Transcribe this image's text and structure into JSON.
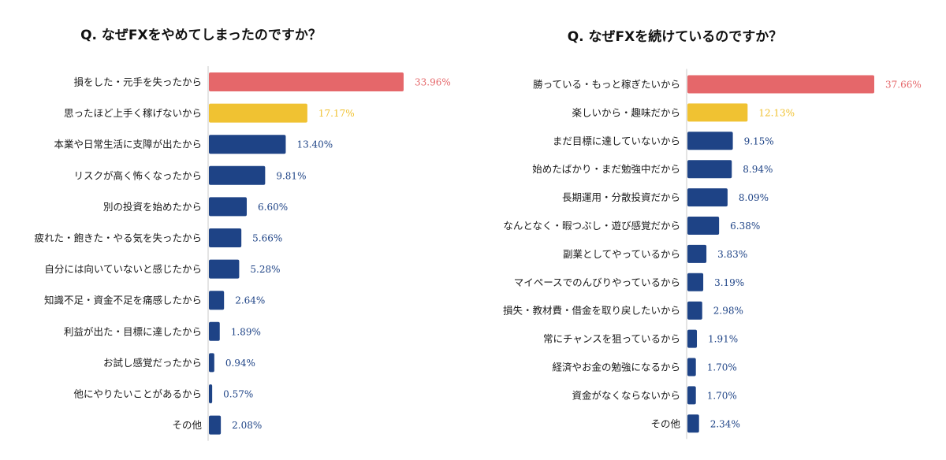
{
  "colors": {
    "top1": "#e5676a",
    "top2": "#f0c232",
    "rest": "#1e4386",
    "axis": "#c9c9c9"
  },
  "chart_data": [
    {
      "type": "bar",
      "orientation": "horizontal",
      "title": "Q. なぜFXをやめてしまったのですか？",
      "xlim": [
        0,
        33.96
      ],
      "categories": [
        "損をした・元手を失ったから",
        "思ったほど上手く稼げないから",
        "本業や日常生活に支障が出たから",
        "リスクが高く怖くなったから",
        "別の投資を始めたから",
        "疲れた・飽きた・やる気を失ったから",
        "自分には向いていないと感じたから",
        "知識不足・資金不足を痛感したから",
        "利益が出た・目標に達したから",
        "お試し感覚だったから",
        "他にやりたいことがあるから",
        "その他"
      ],
      "values": [
        33.96,
        17.17,
        13.4,
        9.81,
        6.6,
        5.66,
        5.28,
        2.64,
        1.89,
        0.94,
        0.57,
        2.08
      ],
      "value_labels": [
        "33.96%",
        "17.17%",
        "13.40%",
        "9.81%",
        "6.60%",
        "5.66%",
        "5.28%",
        "2.64%",
        "1.89%",
        "0.94%",
        "0.57%",
        "2.08%"
      ]
    },
    {
      "type": "bar",
      "orientation": "horizontal",
      "title": "Q. なぜFXを続けているのですか？",
      "xlim": [
        0,
        37.66
      ],
      "categories": [
        "勝っている・もっと稼ぎたいから",
        "楽しいから・趣味だから",
        "まだ目標に達していないから",
        "始めたばかり・まだ勉強中だから",
        "長期運用・分散投資だから",
        "なんとなく・暇つぶし・遊び感覚だから",
        "副業としてやっているから",
        "マイペースでのんびりやっているから",
        "損失・教材費・借金を取り戻したいから",
        "常にチャンスを狙っているから",
        "経済やお金の勉強になるから",
        "資金がなくならないから",
        "その他"
      ],
      "values": [
        37.66,
        12.13,
        9.15,
        8.94,
        8.09,
        6.38,
        3.83,
        3.19,
        2.98,
        1.91,
        1.7,
        1.7,
        2.34
      ],
      "value_labels": [
        "37.66%",
        "12.13%",
        "9.15%",
        "8.94%",
        "8.09%",
        "6.38%",
        "3.83%",
        "3.19%",
        "2.98%",
        "1.91%",
        "1.70%",
        "1.70%",
        "2.34%"
      ]
    }
  ]
}
